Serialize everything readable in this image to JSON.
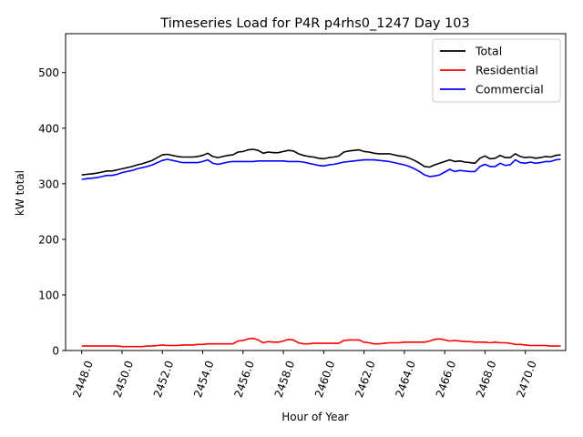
{
  "chart_data": {
    "type": "line",
    "title": "Timeseries Load for P4R p4rhs0_1247  Day 103",
    "xlabel": "Hour of Year",
    "ylabel": "kW total",
    "xlim": [
      2447.2,
      2472.0
    ],
    "ylim": [
      0,
      570
    ],
    "xticks": [
      "2448.0",
      "2450.0",
      "2452.0",
      "2454.0",
      "2456.0",
      "2458.0",
      "2460.0",
      "2462.0",
      "2464.0",
      "2466.0",
      "2468.0",
      "2470.0"
    ],
    "yticks": [
      "0",
      "100",
      "200",
      "300",
      "400",
      "500"
    ],
    "legend_position": "top-right",
    "grid": false,
    "x": [
      2448.0,
      2448.25,
      2448.5,
      2448.75,
      2449.0,
      2449.25,
      2449.5,
      2449.75,
      2450.0,
      2450.25,
      2450.5,
      2450.75,
      2451.0,
      2451.25,
      2451.5,
      2451.75,
      2452.0,
      2452.25,
      2452.5,
      2452.75,
      2453.0,
      2453.25,
      2453.5,
      2453.75,
      2454.0,
      2454.25,
      2454.5,
      2454.75,
      2455.0,
      2455.25,
      2455.5,
      2455.75,
      2456.0,
      2456.25,
      2456.5,
      2456.75,
      2457.0,
      2457.25,
      2457.5,
      2457.75,
      2458.0,
      2458.25,
      2458.5,
      2458.75,
      2459.0,
      2459.25,
      2459.5,
      2459.75,
      2460.0,
      2460.25,
      2460.5,
      2460.75,
      2461.0,
      2461.25,
      2461.5,
      2461.75,
      2462.0,
      2462.25,
      2462.5,
      2462.75,
      2463.0,
      2463.25,
      2463.5,
      2463.75,
      2464.0,
      2464.25,
      2464.5,
      2464.75,
      2465.0,
      2465.25,
      2465.5,
      2465.75,
      2466.0,
      2466.25,
      2466.5,
      2466.75,
      2467.0,
      2467.25,
      2467.5,
      2467.75,
      2468.0,
      2468.25,
      2468.5,
      2468.75,
      2469.0,
      2469.25,
      2469.5,
      2469.75,
      2470.0,
      2470.25,
      2470.5,
      2470.75,
      2471.0,
      2471.25,
      2471.5,
      2471.75
    ],
    "series": [
      {
        "name": "Total",
        "color": "#000000",
        "values": [
          316,
          317,
          318,
          319,
          321,
          323,
          323,
          325,
          327,
          329,
          331,
          334,
          336,
          339,
          342,
          347,
          352,
          353,
          351,
          349,
          348,
          348,
          348,
          349,
          351,
          355,
          349,
          347,
          349,
          351,
          352,
          357,
          358,
          361,
          362,
          360,
          355,
          357,
          356,
          356,
          358,
          360,
          359,
          354,
          351,
          349,
          348,
          346,
          345,
          347,
          348,
          350,
          357,
          359,
          360,
          361,
          358,
          357,
          355,
          354,
          354,
          354,
          352,
          350,
          349,
          346,
          342,
          337,
          331,
          330,
          334,
          337,
          340,
          343,
          340,
          341,
          339,
          338,
          337,
          346,
          350,
          345,
          346,
          351,
          347,
          347,
          354,
          349,
          347,
          348,
          346,
          347,
          349,
          348,
          351,
          352
        ]
      },
      {
        "name": "Residential",
        "color": "#ff0000",
        "values": [
          8,
          8,
          8,
          8,
          8,
          8,
          8,
          8,
          7,
          7,
          7,
          7,
          7,
          8,
          8,
          9,
          10,
          9,
          9,
          9,
          10,
          10,
          10,
          11,
          11,
          12,
          12,
          12,
          12,
          12,
          12,
          17,
          18,
          21,
          22,
          19,
          14,
          16,
          15,
          15,
          17,
          20,
          19,
          14,
          12,
          12,
          13,
          13,
          13,
          13,
          13,
          13,
          18,
          19,
          19,
          19,
          15,
          14,
          12,
          12,
          13,
          14,
          14,
          14,
          15,
          15,
          15,
          15,
          15,
          17,
          20,
          21,
          19,
          17,
          18,
          17,
          16,
          16,
          15,
          15,
          15,
          14,
          15,
          14,
          14,
          13,
          11,
          11,
          10,
          9,
          9,
          9,
          9,
          8,
          8,
          8
        ]
      },
      {
        "name": "Commercial",
        "color": "#0000ff",
        "values": [
          308,
          309,
          310,
          311,
          313,
          315,
          315,
          317,
          320,
          322,
          324,
          327,
          329,
          331,
          334,
          338,
          342,
          344,
          342,
          340,
          338,
          338,
          338,
          338,
          340,
          343,
          337,
          335,
          337,
          339,
          340,
          340,
          340,
          340,
          340,
          341,
          341,
          341,
          341,
          341,
          341,
          340,
          340,
          340,
          339,
          337,
          335,
          333,
          332,
          334,
          335,
          337,
          339,
          340,
          341,
          342,
          343,
          343,
          343,
          342,
          341,
          340,
          338,
          336,
          334,
          331,
          327,
          322,
          316,
          313,
          314,
          316,
          321,
          326,
          322,
          324,
          323,
          322,
          322,
          331,
          335,
          331,
          331,
          337,
          333,
          334,
          343,
          338,
          337,
          339,
          337,
          338,
          340,
          340,
          343,
          344
        ]
      }
    ]
  }
}
